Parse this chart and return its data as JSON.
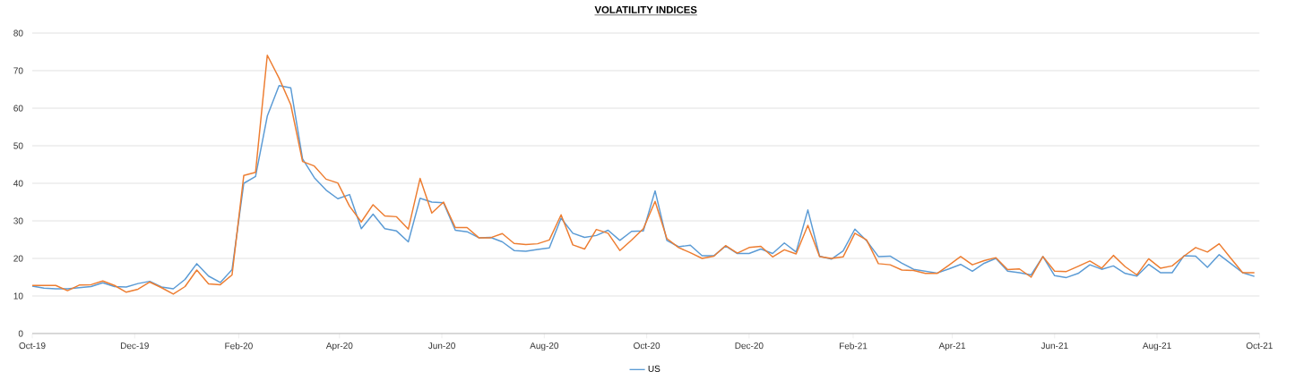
{
  "chart_data": {
    "type": "line",
    "title": "VOLATILITY INDICES",
    "x": [
      "2019-10-01",
      "2019-10-08",
      "2019-10-15",
      "2019-10-22",
      "2019-10-29",
      "2019-11-05",
      "2019-11-12",
      "2019-11-19",
      "2019-11-26",
      "2019-12-03",
      "2019-12-10",
      "2019-12-17",
      "2019-12-24",
      "2019-12-31",
      "2020-01-07",
      "2020-01-14",
      "2020-01-21",
      "2020-01-28",
      "2020-02-04",
      "2020-02-11",
      "2020-02-18",
      "2020-02-25",
      "2020-03-03",
      "2020-03-10",
      "2020-03-17",
      "2020-03-24",
      "2020-03-31",
      "2020-04-07",
      "2020-04-14",
      "2020-04-21",
      "2020-04-28",
      "2020-05-05",
      "2020-05-12",
      "2020-05-19",
      "2020-05-26",
      "2020-06-02",
      "2020-06-09",
      "2020-06-16",
      "2020-06-23",
      "2020-06-30",
      "2020-07-07",
      "2020-07-14",
      "2020-07-21",
      "2020-07-28",
      "2020-08-04",
      "2020-08-11",
      "2020-08-18",
      "2020-08-25",
      "2020-09-01",
      "2020-09-08",
      "2020-09-15",
      "2020-09-22",
      "2020-09-29",
      "2020-10-06",
      "2020-10-13",
      "2020-10-20",
      "2020-10-27",
      "2020-11-03",
      "2020-11-10",
      "2020-11-17",
      "2020-11-24",
      "2020-12-01",
      "2020-12-08",
      "2020-12-15",
      "2020-12-22",
      "2020-12-29",
      "2021-01-05",
      "2021-01-12",
      "2021-01-19",
      "2021-01-26",
      "2021-02-02",
      "2021-02-09",
      "2021-02-16",
      "2021-02-23",
      "2021-03-02",
      "2021-03-09",
      "2021-03-16",
      "2021-03-23",
      "2021-03-30",
      "2021-04-06",
      "2021-04-13",
      "2021-04-20",
      "2021-04-27",
      "2021-05-04",
      "2021-05-11",
      "2021-05-18",
      "2021-05-25",
      "2021-06-01",
      "2021-06-08",
      "2021-06-15",
      "2021-06-22",
      "2021-06-29",
      "2021-07-06",
      "2021-07-13",
      "2021-07-20",
      "2021-07-27",
      "2021-08-03",
      "2021-08-10",
      "2021-08-17",
      "2021-08-24",
      "2021-08-31",
      "2021-09-07",
      "2021-09-14",
      "2021-09-21",
      "2021-09-28"
    ],
    "series": [
      {
        "name": "US",
        "color": "#5b9bd5",
        "values": [
          12.6,
          12.1,
          11.9,
          11.9,
          12.2,
          12.5,
          13.5,
          12.5,
          12.4,
          13.3,
          13.9,
          12.4,
          11.9,
          14.4,
          18.6,
          15.3,
          13.6,
          17.0,
          40.0,
          41.8,
          57.9,
          66.0,
          65.4,
          46.5,
          41.5,
          38.2,
          35.9,
          37.0,
          27.9,
          31.8,
          27.9,
          27.3,
          24.4,
          36.0,
          35.0,
          34.8,
          27.5,
          27.1,
          25.5,
          25.6,
          24.4,
          22.1,
          21.9,
          22.4,
          22.8,
          30.7,
          26.7,
          25.6,
          26.1,
          27.5,
          24.8,
          27.2,
          27.3,
          38.0,
          24.8,
          23.1,
          23.5,
          20.7,
          20.7,
          23.3,
          21.3,
          21.3,
          22.5,
          21.3,
          24.1,
          21.7,
          32.9,
          20.6,
          19.8,
          22.0,
          27.8,
          24.7,
          20.5,
          20.6,
          18.7,
          17.1,
          16.6,
          16.1,
          17.2,
          18.4,
          16.6,
          18.7,
          20.0,
          16.6,
          16.2,
          15.6,
          20.5,
          15.4,
          14.9,
          16.0,
          18.3,
          17.1,
          18.0,
          16.0,
          15.3,
          18.4,
          16.2,
          16.2,
          20.7,
          20.6,
          17.6,
          21.0,
          18.6,
          16.2,
          15.2
        ]
      },
      {
        "color": "#ed7d31",
        "values": [
          12.8,
          12.8,
          12.8,
          11.4,
          12.9,
          13.0,
          14.0,
          12.8,
          11.0,
          11.8,
          13.7,
          12.2,
          10.5,
          12.5,
          16.9,
          13.2,
          13.0,
          15.6,
          42.1,
          42.9,
          74.1,
          68.0,
          60.9,
          45.8,
          44.6,
          41.1,
          40.1,
          33.9,
          29.7,
          34.3,
          31.3,
          31.1,
          27.8,
          41.3,
          32.1,
          35.0,
          28.2,
          28.2,
          25.5,
          25.5,
          26.6,
          24.0,
          23.7,
          23.9,
          24.9,
          31.6,
          23.6,
          22.5,
          27.7,
          26.7,
          22.1,
          24.9,
          27.9,
          35.2,
          25.3,
          22.9,
          21.5,
          20.0,
          20.6,
          23.4,
          21.4,
          22.9,
          23.2,
          20.4,
          22.3,
          21.2,
          28.8,
          20.5,
          20.0,
          20.4,
          26.7,
          24.9,
          18.6,
          18.3,
          16.9,
          16.8,
          16.0,
          16.0,
          18.2,
          20.5,
          18.3,
          19.4,
          20.2,
          17.0,
          17.2,
          15.0,
          20.5,
          16.6,
          16.5,
          17.9,
          19.3,
          17.4,
          20.8,
          17.8,
          15.6,
          19.9,
          17.4,
          18.0,
          20.6,
          22.9,
          21.7,
          23.9,
          20.0,
          16.2,
          16.2
        ]
      }
    ],
    "xlim": [
      "2019-10-01",
      "2021-10-01"
    ],
    "xticks": [
      {
        "value": "2019-10-01",
        "label": "Oct-19"
      },
      {
        "value": "2019-12-01",
        "label": "Dec-19"
      },
      {
        "value": "2020-02-01",
        "label": "Feb-20"
      },
      {
        "value": "2020-04-01",
        "label": "Apr-20"
      },
      {
        "value": "2020-06-01",
        "label": "Jun-20"
      },
      {
        "value": "2020-08-01",
        "label": "Aug-20"
      },
      {
        "value": "2020-10-01",
        "label": "Oct-20"
      },
      {
        "value": "2020-12-01",
        "label": "Dec-20"
      },
      {
        "value": "2021-02-01",
        "label": "Feb-21"
      },
      {
        "value": "2021-04-01",
        "label": "Apr-21"
      },
      {
        "value": "2021-06-01",
        "label": "Jun-21"
      },
      {
        "value": "2021-08-01",
        "label": "Aug-21"
      },
      {
        "value": "2021-10-01",
        "label": "Oct-21"
      }
    ],
    "ylim": [
      0,
      80
    ],
    "yticks": [
      0,
      10,
      20,
      30,
      40,
      50,
      60,
      70,
      80
    ],
    "grid": "y",
    "legend": "bottom",
    "marker": "none",
    "line_style": "solid"
  }
}
